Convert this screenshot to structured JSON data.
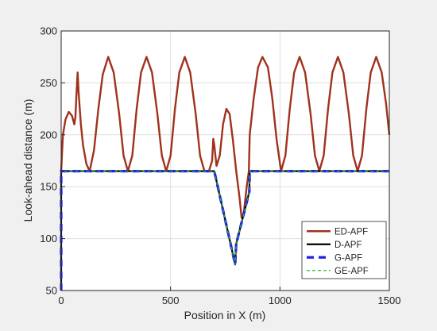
{
  "chart_data": {
    "type": "line",
    "xlabel": "Position in X (m)",
    "ylabel": "Look-ahead distance (m)",
    "xlim": [
      0,
      1500
    ],
    "ylim": [
      50,
      300
    ],
    "xticks": [
      0,
      500,
      1000,
      1500
    ],
    "yticks": [
      50,
      100,
      150,
      200,
      250,
      300
    ],
    "x_tick_labels": [
      "0",
      "500",
      "1000",
      "1500"
    ],
    "y_tick_labels": [
      "50",
      "100",
      "150",
      "200",
      "250",
      "300"
    ],
    "grid": true,
    "legend_position": "bottom-right",
    "series": [
      {
        "name": "ED-APF",
        "color": "#a0321e",
        "dash": "solid",
        "points": [
          [
            0,
            165
          ],
          [
            8,
            200
          ],
          [
            20,
            215
          ],
          [
            35,
            222
          ],
          [
            50,
            218
          ],
          [
            60,
            210
          ],
          [
            65,
            217
          ],
          [
            70,
            240
          ],
          [
            75,
            260
          ],
          [
            80,
            240
          ],
          [
            90,
            210
          ],
          [
            100,
            190
          ],
          [
            115,
            172
          ],
          [
            130,
            165
          ],
          [
            150,
            185
          ],
          [
            170,
            225
          ],
          [
            190,
            258
          ],
          [
            215,
            275
          ],
          [
            240,
            260
          ],
          [
            265,
            220
          ],
          [
            285,
            180
          ],
          [
            305,
            165
          ],
          [
            325,
            180
          ],
          [
            345,
            225
          ],
          [
            365,
            260
          ],
          [
            390,
            275
          ],
          [
            415,
            260
          ],
          [
            440,
            220
          ],
          [
            460,
            180
          ],
          [
            480,
            165
          ],
          [
            500,
            180
          ],
          [
            520,
            225
          ],
          [
            540,
            260
          ],
          [
            565,
            275
          ],
          [
            590,
            260
          ],
          [
            615,
            220
          ],
          [
            635,
            180
          ],
          [
            655,
            165
          ],
          [
            675,
            165
          ],
          [
            690,
            175
          ],
          [
            695,
            196
          ],
          [
            700,
            190
          ],
          [
            710,
            170
          ],
          [
            725,
            180
          ],
          [
            740,
            210
          ],
          [
            755,
            225
          ],
          [
            770,
            220
          ],
          [
            785,
            195
          ],
          [
            800,
            165
          ],
          [
            815,
            140
          ],
          [
            825,
            120
          ],
          [
            835,
            125
          ],
          [
            848,
            150
          ],
          [
            858,
            165
          ],
          [
            862,
            200
          ],
          [
            880,
            235
          ],
          [
            900,
            265
          ],
          [
            920,
            275
          ],
          [
            945,
            265
          ],
          [
            965,
            235
          ],
          [
            985,
            195
          ],
          [
            1005,
            165
          ],
          [
            1025,
            180
          ],
          [
            1045,
            225
          ],
          [
            1065,
            260
          ],
          [
            1090,
            275
          ],
          [
            1115,
            260
          ],
          [
            1140,
            220
          ],
          [
            1160,
            180
          ],
          [
            1180,
            165
          ],
          [
            1200,
            180
          ],
          [
            1220,
            225
          ],
          [
            1240,
            260
          ],
          [
            1265,
            275
          ],
          [
            1290,
            260
          ],
          [
            1315,
            220
          ],
          [
            1335,
            180
          ],
          [
            1355,
            165
          ],
          [
            1375,
            180
          ],
          [
            1395,
            225
          ],
          [
            1415,
            260
          ],
          [
            1440,
            275
          ],
          [
            1465,
            260
          ],
          [
            1485,
            230
          ],
          [
            1500,
            200
          ]
        ]
      },
      {
        "name": "D-APF",
        "color": "#000000",
        "dash": "solid",
        "points": [
          [
            0,
            50
          ],
          [
            0,
            165
          ],
          [
            700,
            165
          ],
          [
            785,
            85
          ],
          [
            795,
            75
          ],
          [
            800,
            95
          ],
          [
            860,
            145
          ],
          [
            862,
            165
          ],
          [
            1500,
            165
          ]
        ]
      },
      {
        "name": "G-APF",
        "color": "#1f1fe8",
        "dash": "dashed",
        "points": [
          [
            0,
            50
          ],
          [
            0,
            165
          ],
          [
            700,
            165
          ],
          [
            785,
            85
          ],
          [
            795,
            75
          ],
          [
            800,
            95
          ],
          [
            860,
            145
          ],
          [
            862,
            165
          ],
          [
            1500,
            165
          ]
        ]
      },
      {
        "name": "GE-APF",
        "color": "#2db82d",
        "dash": "dashed",
        "points": [
          [
            0,
            50
          ],
          [
            0,
            165
          ],
          [
            700,
            165
          ],
          [
            785,
            85
          ],
          [
            795,
            75
          ],
          [
            800,
            95
          ],
          [
            860,
            145
          ],
          [
            862,
            165
          ],
          [
            1500,
            165
          ]
        ]
      }
    ]
  }
}
